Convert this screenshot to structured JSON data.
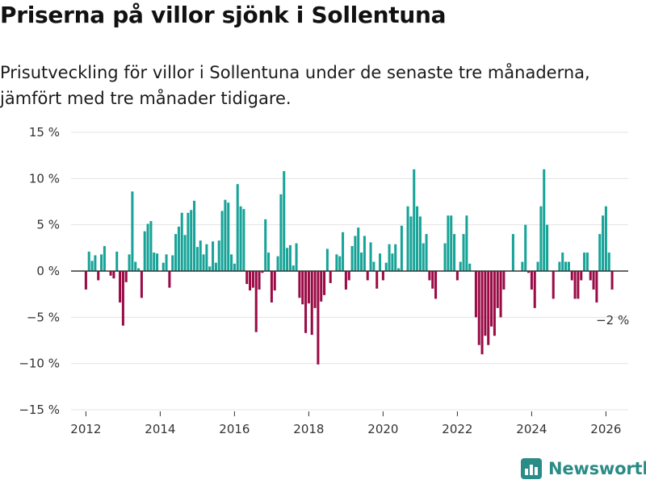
{
  "header": {
    "title": "Priserna på villor sjönk i Sollentuna",
    "subtitle": "Prisutveckling för villor i Sollentuna under de senaste tre månaderna, jämfört med tre månader tidigare."
  },
  "brand": {
    "name": "Newsworthy",
    "icon": "bar-chart-logo-icon"
  },
  "colors": {
    "positive": "#17a398",
    "negative": "#9a0b46",
    "zero_line": "#333333",
    "grid": "#e3e3e3",
    "brand": "#2a8c86"
  },
  "chart_data": {
    "type": "bar",
    "title": "Priserna på villor sjönk i Sollentuna",
    "xlabel": "",
    "ylabel": "",
    "ylim": [
      -15,
      15
    ],
    "xlim": [
      2011.6,
      2026.6
    ],
    "yticks": [
      15,
      10,
      5,
      0,
      -5,
      -10,
      -15
    ],
    "ytick_labels": [
      "15 %",
      "10 %",
      "5 %",
      "0 %",
      "−5 %",
      "−10 %",
      "−15 %"
    ],
    "xticks": [
      2012,
      2014,
      2016,
      2018,
      2020,
      2022,
      2024,
      2026
    ],
    "xtick_labels": [
      "2012",
      "2014",
      "2016",
      "2018",
      "2020",
      "2022",
      "2024",
      "2026"
    ],
    "grid": true,
    "start": "2012-01",
    "frequency": "monthly",
    "last_label": "−2 %",
    "values": [
      -2,
      2.1,
      1.1,
      1.7,
      -1,
      1.8,
      2.7,
      0,
      -0.5,
      -0.8,
      2.1,
      -3.4,
      -5.9,
      -1.2,
      1.8,
      8.6,
      1.0,
      0.3,
      -2.9,
      4.3,
      5.1,
      5.4,
      2.0,
      1.9,
      0,
      0.9,
      1.8,
      -1.8,
      1.7,
      4.0,
      4.8,
      6.3,
      3.9,
      6.3,
      6.6,
      7.6,
      2.6,
      3.3,
      1.8,
      2.9,
      0.5,
      3.2,
      0.9,
      3.3,
      6.5,
      7.7,
      7.4,
      1.8,
      0.8,
      9.4,
      7.0,
      6.7,
      -1.4,
      -2.1,
      -1.8,
      -6.6,
      -2.0,
      -0.2,
      5.6,
      2.0,
      -3.4,
      -2.1,
      1.6,
      8.3,
      10.8,
      2.5,
      2.8,
      0.6,
      3.0,
      -2.9,
      -3.6,
      -6.7,
      -3.5,
      -6.9,
      -4.0,
      -10.1,
      -3.3,
      -2.6,
      2.4,
      -1.3,
      0,
      1.8,
      1.6,
      4.2,
      -2.0,
      -1.0,
      2.7,
      3.8,
      4.7,
      2.0,
      3.8,
      -1.0,
      3.1,
      1.0,
      -1.9,
      1.9,
      -1.0,
      0.9,
      2.9,
      1.9,
      2.9,
      0.3,
      4.9,
      0,
      7.0,
      5.9,
      11.0,
      7.0,
      5.9,
      3.0,
      4.0,
      -1.0,
      -1.9,
      -3.0,
      0,
      0,
      3.0,
      6.0,
      6.0,
      4.0,
      -1.0,
      1.0,
      4.0,
      6.0,
      0.8,
      0,
      -5.0,
      -8.0,
      -9.0,
      -7.0,
      -8.0,
      -6.0,
      -7.0,
      -4.0,
      -5.0,
      -2.0,
      0,
      0,
      4.0,
      0,
      0,
      1.0,
      5.0,
      -0.2,
      -2.0,
      -4.0,
      1.0,
      7.0,
      11.0,
      5.0,
      0,
      -3.0,
      0,
      1.0,
      2.0,
      1.0,
      1.0,
      -1.0,
      -3.0,
      -3.0,
      -1.0,
      2.0,
      2.0,
      -1.0,
      -2.0,
      -3.4,
      4.0,
      6.0,
      7.0,
      2.0,
      -2.0
    ]
  }
}
